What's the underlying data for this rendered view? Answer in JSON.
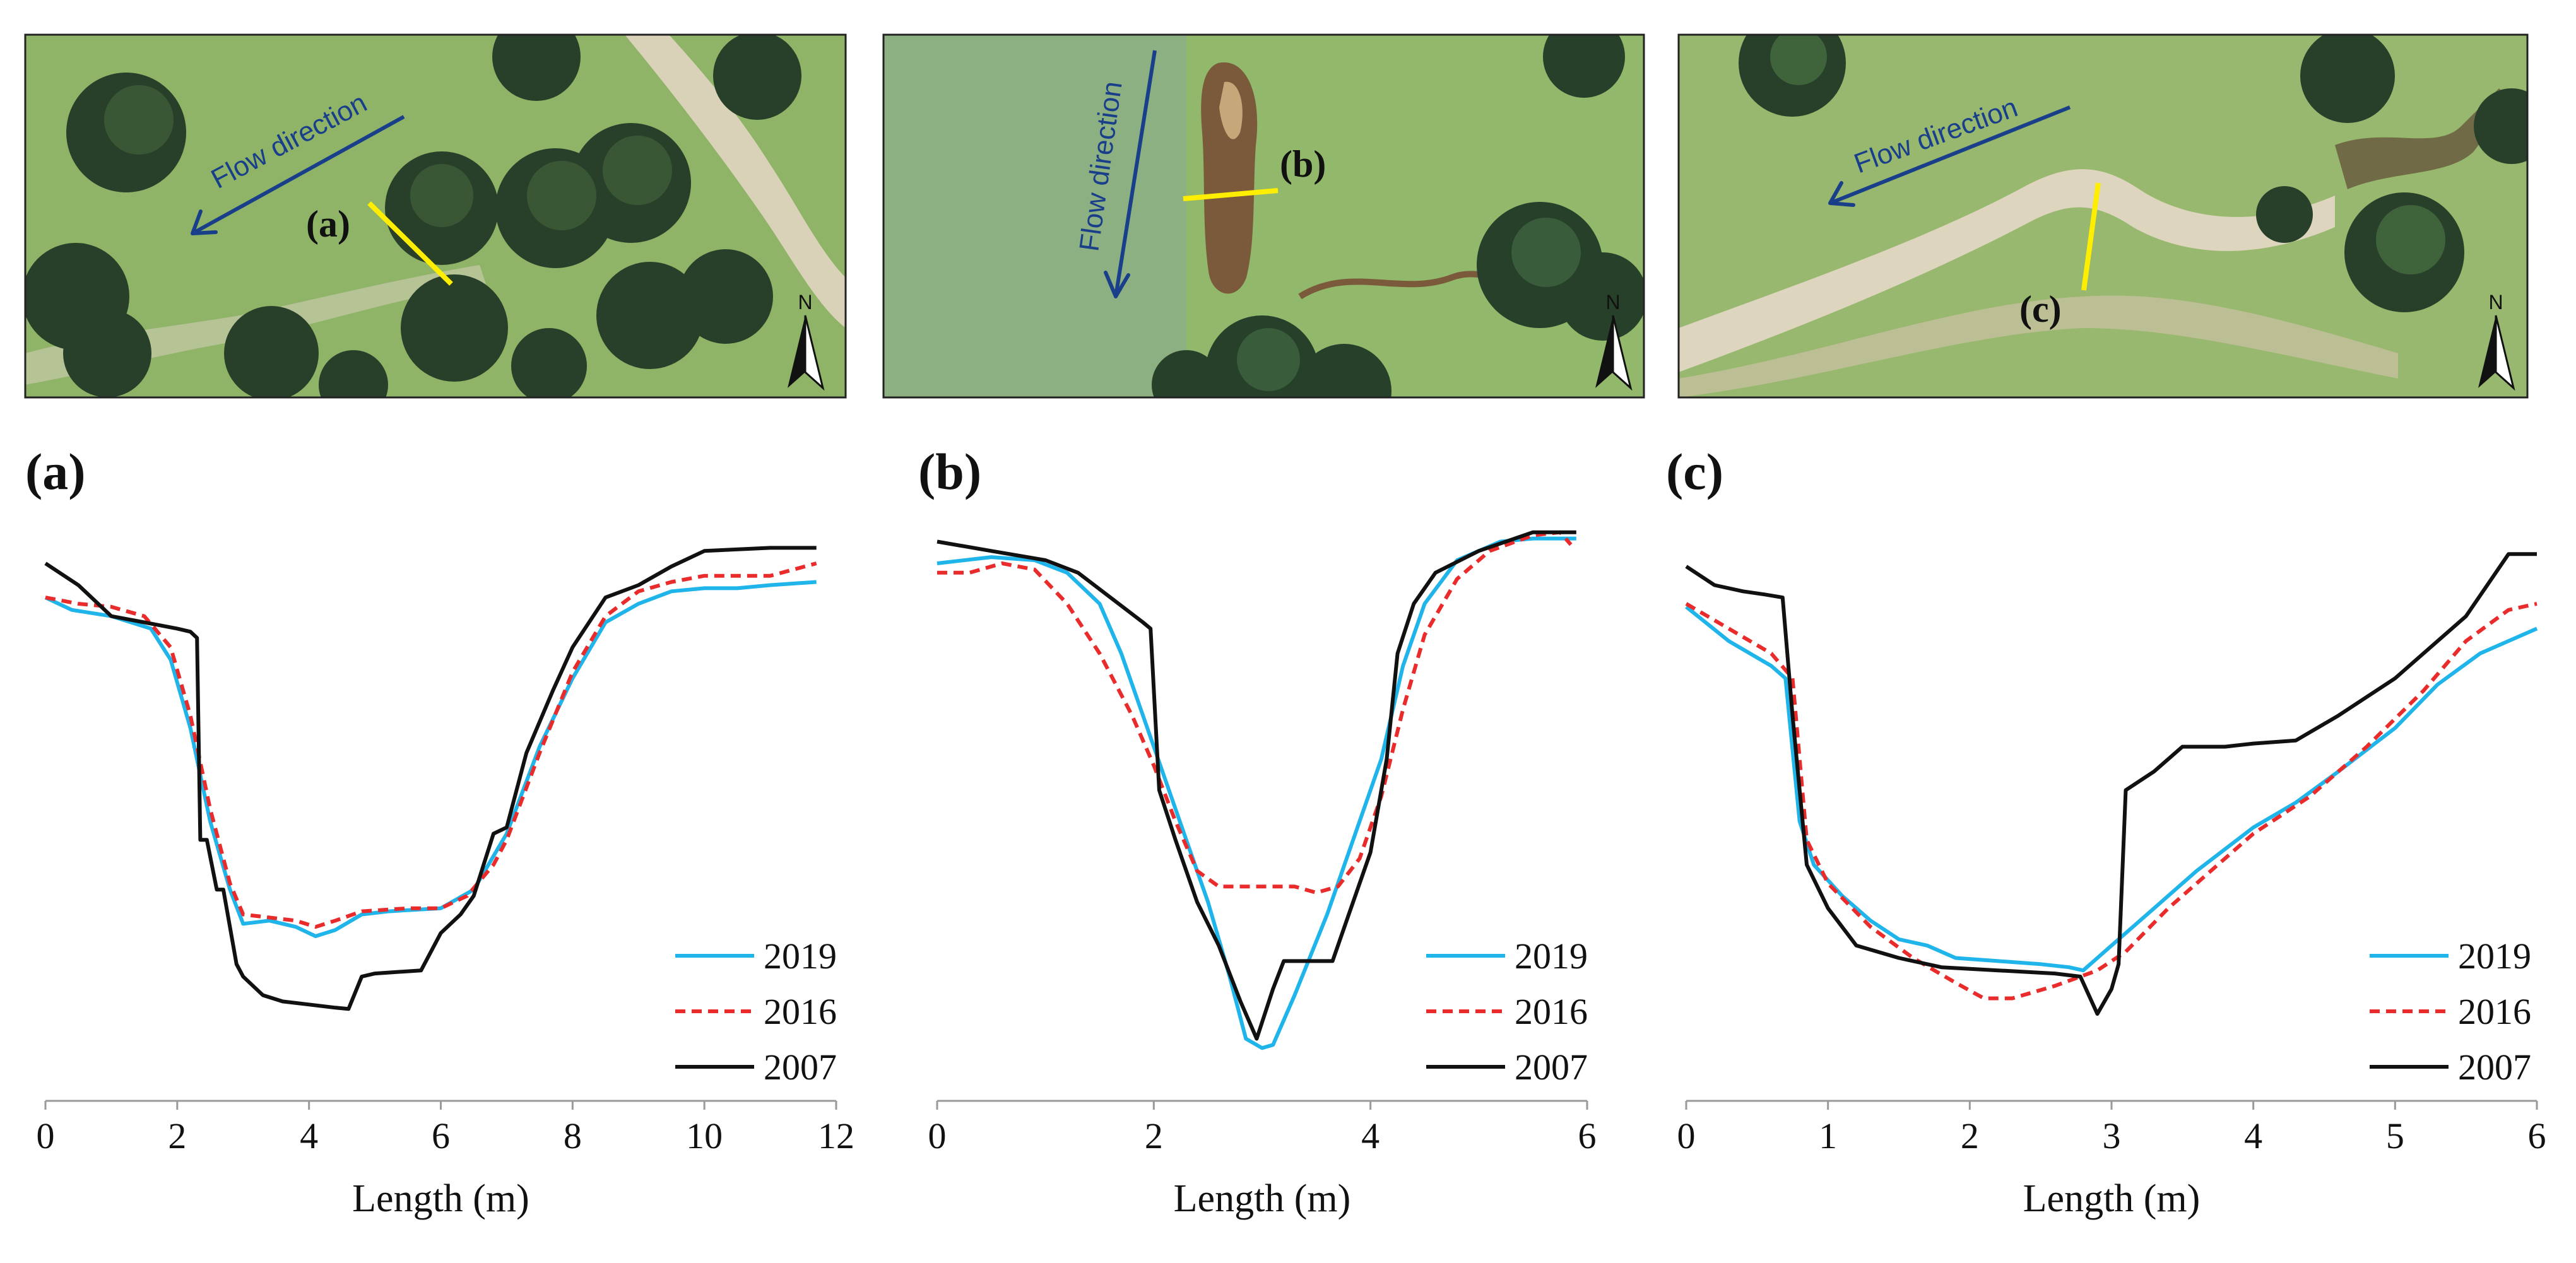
{
  "figure": {
    "photos": [
      {
        "flow_label": "Flow direction",
        "section_label": "(a)",
        "north_label": "N",
        "colors": {
          "grass": "#8fb468",
          "tree": "#28402a",
          "path": "#d9d2b8",
          "arrow": "#1a3f8a",
          "section_line": "#ffee00"
        }
      },
      {
        "flow_label": "Flow direction",
        "section_label": "(b)",
        "north_label": "N",
        "colors": {
          "grass": "#92b86c",
          "tree": "#27402a",
          "pond": "#7a5a3a",
          "arrow": "#1a3f8a",
          "section_line": "#ffee00"
        }
      },
      {
        "flow_label": "Flow direction",
        "section_label": "(c)",
        "north_label": "N",
        "colors": {
          "grass": "#97b86e",
          "tree": "#28402a",
          "path": "#ddd5bd",
          "arrow": "#1a3f8a",
          "section_line": "#ffee00"
        }
      }
    ]
  },
  "chart_data": [
    {
      "type": "line",
      "panel_label": "(a)",
      "xlabel": "Length (m)",
      "ylabel": "",
      "xlim": [
        0,
        12
      ],
      "xticks": [
        "0",
        "2",
        "4",
        "6",
        "8",
        "10",
        "12"
      ],
      "ylim": [
        0,
        1
      ],
      "y_axis_visible": false,
      "legend_position": "lower-right",
      "series": [
        {
          "name": "2019",
          "color": "#1fb4ea",
          "dash": "solid",
          "points": [
            [
              0,
              0.81
            ],
            [
              0.4,
              0.79
            ],
            [
              1,
              0.78
            ],
            [
              1.6,
              0.76
            ],
            [
              1.9,
              0.71
            ],
            [
              2.2,
              0.6
            ],
            [
              2.5,
              0.45
            ],
            [
              2.8,
              0.34
            ],
            [
              3,
              0.285
            ],
            [
              3.4,
              0.29
            ],
            [
              3.8,
              0.28
            ],
            [
              4.1,
              0.265
            ],
            [
              4.4,
              0.275
            ],
            [
              4.8,
              0.3
            ],
            [
              5.2,
              0.305
            ],
            [
              6,
              0.31
            ],
            [
              6.5,
              0.34
            ],
            [
              7,
              0.43
            ],
            [
              7.5,
              0.57
            ],
            [
              8,
              0.68
            ],
            [
              8.5,
              0.77
            ],
            [
              9,
              0.8
            ],
            [
              9.5,
              0.82
            ],
            [
              10,
              0.825
            ],
            [
              10.5,
              0.825
            ],
            [
              11,
              0.83
            ],
            [
              11.7,
              0.835
            ]
          ]
        },
        {
          "name": "2016",
          "color": "#ea2b2b",
          "dash": "dashed",
          "points": [
            [
              0,
              0.81
            ],
            [
              0.5,
              0.8
            ],
            [
              1,
              0.795
            ],
            [
              1.5,
              0.78
            ],
            [
              1.9,
              0.73
            ],
            [
              2.2,
              0.62
            ],
            [
              2.5,
              0.47
            ],
            [
              2.8,
              0.35
            ],
            [
              3,
              0.3
            ],
            [
              3.4,
              0.295
            ],
            [
              3.8,
              0.29
            ],
            [
              4.1,
              0.28
            ],
            [
              4.4,
              0.29
            ],
            [
              4.8,
              0.305
            ],
            [
              5.5,
              0.31
            ],
            [
              6,
              0.31
            ],
            [
              6.4,
              0.33
            ],
            [
              6.8,
              0.38
            ],
            [
              7,
              0.42
            ],
            [
              7.5,
              0.56
            ],
            [
              8,
              0.69
            ],
            [
              8.5,
              0.78
            ],
            [
              9,
              0.82
            ],
            [
              9.5,
              0.835
            ],
            [
              10,
              0.845
            ],
            [
              11,
              0.845
            ],
            [
              11.7,
              0.865
            ]
          ]
        },
        {
          "name": "2007",
          "color": "#111111",
          "dash": "solid",
          "points": [
            [
              0,
              0.865
            ],
            [
              0.5,
              0.83
            ],
            [
              1,
              0.78
            ],
            [
              1.5,
              0.77
            ],
            [
              2,
              0.76
            ],
            [
              2.2,
              0.755
            ],
            [
              2.3,
              0.745
            ],
            [
              2.35,
              0.42
            ],
            [
              2.45,
              0.42
            ],
            [
              2.6,
              0.34
            ],
            [
              2.7,
              0.34
            ],
            [
              2.9,
              0.22
            ],
            [
              3,
              0.2
            ],
            [
              3.3,
              0.17
            ],
            [
              3.6,
              0.16
            ],
            [
              4,
              0.155
            ],
            [
              4.4,
              0.15
            ],
            [
              4.6,
              0.148
            ],
            [
              4.8,
              0.2
            ],
            [
              5,
              0.205
            ],
            [
              5.7,
              0.21
            ],
            [
              6,
              0.27
            ],
            [
              6.3,
              0.3
            ],
            [
              6.5,
              0.33
            ],
            [
              6.8,
              0.43
            ],
            [
              7,
              0.44
            ],
            [
              7.3,
              0.56
            ],
            [
              7.7,
              0.66
            ],
            [
              8,
              0.73
            ],
            [
              8.5,
              0.81
            ],
            [
              9,
              0.83
            ],
            [
              9.5,
              0.86
            ],
            [
              10,
              0.885
            ],
            [
              11,
              0.89
            ],
            [
              11.7,
              0.89
            ]
          ]
        }
      ]
    },
    {
      "type": "line",
      "panel_label": "(b)",
      "xlabel": "Length (m)",
      "ylabel": "",
      "xlim": [
        0,
        6
      ],
      "xticks": [
        "0",
        "2",
        "4",
        "6"
      ],
      "ylim": [
        0,
        1
      ],
      "y_axis_visible": false,
      "legend_position": "lower-right",
      "series": [
        {
          "name": "2019",
          "color": "#1fb4ea",
          "dash": "solid",
          "points": [
            [
              0,
              0.865
            ],
            [
              0.5,
              0.875
            ],
            [
              0.9,
              0.87
            ],
            [
              1.2,
              0.85
            ],
            [
              1.5,
              0.8
            ],
            [
              1.7,
              0.72
            ],
            [
              1.9,
              0.62
            ],
            [
              2.1,
              0.52
            ],
            [
              2.3,
              0.42
            ],
            [
              2.5,
              0.32
            ],
            [
              2.7,
              0.2
            ],
            [
              2.85,
              0.1
            ],
            [
              3,
              0.085
            ],
            [
              3.1,
              0.09
            ],
            [
              3.3,
              0.17
            ],
            [
              3.6,
              0.3
            ],
            [
              3.9,
              0.45
            ],
            [
              4.1,
              0.55
            ],
            [
              4.3,
              0.7
            ],
            [
              4.5,
              0.8
            ],
            [
              4.8,
              0.87
            ],
            [
              5.2,
              0.9
            ],
            [
              5.5,
              0.905
            ],
            [
              5.9,
              0.905
            ]
          ]
        },
        {
          "name": "2016",
          "color": "#ea2b2b",
          "dash": "dashed",
          "points": [
            [
              0,
              0.85
            ],
            [
              0.3,
              0.85
            ],
            [
              0.6,
              0.865
            ],
            [
              0.9,
              0.855
            ],
            [
              1.2,
              0.8
            ],
            [
              1.5,
              0.72
            ],
            [
              1.8,
              0.62
            ],
            [
              2,
              0.54
            ],
            [
              2.2,
              0.45
            ],
            [
              2.4,
              0.37
            ],
            [
              2.6,
              0.345
            ],
            [
              3,
              0.345
            ],
            [
              3.3,
              0.345
            ],
            [
              3.5,
              0.335
            ],
            [
              3.7,
              0.345
            ],
            [
              3.9,
              0.39
            ],
            [
              4.1,
              0.49
            ],
            [
              4.3,
              0.63
            ],
            [
              4.5,
              0.75
            ],
            [
              4.8,
              0.84
            ],
            [
              5.1,
              0.885
            ],
            [
              5.5,
              0.91
            ],
            [
              5.75,
              0.915
            ],
            [
              5.85,
              0.895
            ]
          ]
        },
        {
          "name": "2007",
          "color": "#111111",
          "dash": "solid",
          "points": [
            [
              0,
              0.9
            ],
            [
              0.5,
              0.885
            ],
            [
              1,
              0.87
            ],
            [
              1.3,
              0.85
            ],
            [
              1.6,
              0.81
            ],
            [
              1.9,
              0.77
            ],
            [
              1.97,
              0.76
            ],
            [
              2.05,
              0.5
            ],
            [
              2.2,
              0.42
            ],
            [
              2.4,
              0.32
            ],
            [
              2.6,
              0.25
            ],
            [
              2.8,
              0.16
            ],
            [
              2.95,
              0.1
            ],
            [
              3.1,
              0.18
            ],
            [
              3.2,
              0.225
            ],
            [
              3.5,
              0.225
            ],
            [
              3.65,
              0.225
            ],
            [
              3.8,
              0.3
            ],
            [
              4,
              0.4
            ],
            [
              4.15,
              0.55
            ],
            [
              4.25,
              0.72
            ],
            [
              4.4,
              0.8
            ],
            [
              4.6,
              0.85
            ],
            [
              5,
              0.885
            ],
            [
              5.5,
              0.915
            ],
            [
              5.9,
              0.915
            ]
          ]
        }
      ]
    },
    {
      "type": "line",
      "panel_label": "(c)",
      "xlabel": "Length (m)",
      "ylabel": "",
      "xlim": [
        0,
        6
      ],
      "xticks": [
        "0",
        "1",
        "2",
        "3",
        "4",
        "5",
        "6"
      ],
      "ylim": [
        0,
        1
      ],
      "y_axis_visible": false,
      "legend_position": "lower-right",
      "series": [
        {
          "name": "2019",
          "color": "#1fb4ea",
          "dash": "solid",
          "points": [
            [
              0,
              0.795
            ],
            [
              0.3,
              0.74
            ],
            [
              0.6,
              0.7
            ],
            [
              0.7,
              0.68
            ],
            [
              0.8,
              0.45
            ],
            [
              0.9,
              0.38
            ],
            [
              1.1,
              0.33
            ],
            [
              1.3,
              0.29
            ],
            [
              1.5,
              0.26
            ],
            [
              1.7,
              0.25
            ],
            [
              1.9,
              0.23
            ],
            [
              2.2,
              0.225
            ],
            [
              2.5,
              0.22
            ],
            [
              2.7,
              0.215
            ],
            [
              2.8,
              0.21
            ],
            [
              3,
              0.25
            ],
            [
              3.3,
              0.31
            ],
            [
              3.6,
              0.37
            ],
            [
              4,
              0.44
            ],
            [
              4.3,
              0.48
            ],
            [
              4.6,
              0.53
            ],
            [
              5,
              0.6
            ],
            [
              5.3,
              0.67
            ],
            [
              5.6,
              0.72
            ],
            [
              6,
              0.76
            ]
          ]
        },
        {
          "name": "2016",
          "color": "#ea2b2b",
          "dash": "dashed",
          "points": [
            [
              0,
              0.8
            ],
            [
              0.3,
              0.76
            ],
            [
              0.6,
              0.72
            ],
            [
              0.75,
              0.68
            ],
            [
              0.85,
              0.42
            ],
            [
              1,
              0.35
            ],
            [
              1.3,
              0.28
            ],
            [
              1.6,
              0.23
            ],
            [
              1.9,
              0.19
            ],
            [
              2.1,
              0.165
            ],
            [
              2.3,
              0.165
            ],
            [
              2.6,
              0.185
            ],
            [
              2.9,
              0.21
            ],
            [
              3.1,
              0.24
            ],
            [
              3.4,
              0.31
            ],
            [
              3.7,
              0.37
            ],
            [
              4,
              0.43
            ],
            [
              4.4,
              0.49
            ],
            [
              4.8,
              0.57
            ],
            [
              5.2,
              0.66
            ],
            [
              5.5,
              0.74
            ],
            [
              5.8,
              0.79
            ],
            [
              6,
              0.8
            ]
          ]
        },
        {
          "name": "2007",
          "color": "#111111",
          "dash": "solid",
          "points": [
            [
              0,
              0.86
            ],
            [
              0.2,
              0.83
            ],
            [
              0.4,
              0.82
            ],
            [
              0.55,
              0.815
            ],
            [
              0.68,
              0.81
            ],
            [
              0.75,
              0.62
            ],
            [
              0.85,
              0.38
            ],
            [
              1,
              0.31
            ],
            [
              1.2,
              0.25
            ],
            [
              1.5,
              0.23
            ],
            [
              1.8,
              0.215
            ],
            [
              2.2,
              0.21
            ],
            [
              2.6,
              0.205
            ],
            [
              2.78,
              0.2
            ],
            [
              2.9,
              0.14
            ],
            [
              3,
              0.18
            ],
            [
              3.05,
              0.22
            ],
            [
              3.1,
              0.5
            ],
            [
              3.3,
              0.53
            ],
            [
              3.5,
              0.57
            ],
            [
              3.8,
              0.57
            ],
            [
              4,
              0.575
            ],
            [
              4.3,
              0.58
            ],
            [
              4.6,
              0.62
            ],
            [
              5,
              0.68
            ],
            [
              5.5,
              0.78
            ],
            [
              5.8,
              0.88
            ],
            [
              6,
              0.88
            ]
          ]
        }
      ]
    }
  ]
}
